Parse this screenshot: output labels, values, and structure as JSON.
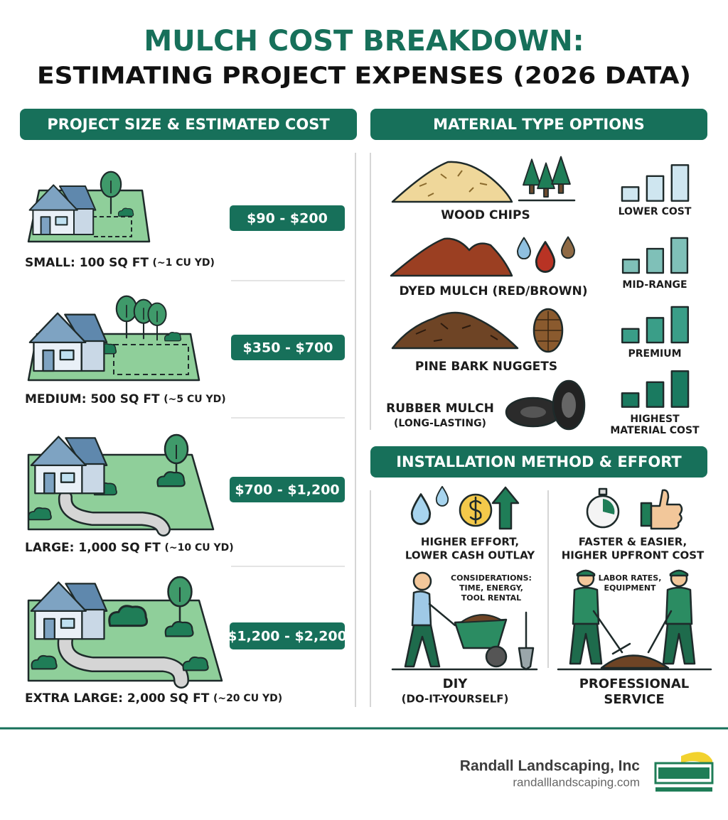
{
  "title": {
    "line1": "MULCH COST BREAKDOWN:",
    "line2": "ESTIMATING PROJECT EXPENSES (2026 DATA)"
  },
  "project_size": {
    "heading": "PROJECT SIZE & ESTIMATED COST",
    "items": [
      {
        "label": "SMALL: 100 SQ FT",
        "note": "(~1 CU YD)",
        "price": "$90 - $200"
      },
      {
        "label": "MEDIUM: 500 SQ FT",
        "note": "(~5 CU YD)",
        "price": "$350 - $700"
      },
      {
        "label": "LARGE: 1,000 SQ FT",
        "note": "(~10 CU YD)",
        "price": "$700 - $1,200"
      },
      {
        "label": "EXTRA LARGE: 2,000 SQ FT",
        "note": "(~20 CU YD)",
        "price": "$1,200 - $2,200"
      }
    ]
  },
  "materials": {
    "heading": "MATERIAL TYPE OPTIONS",
    "items": [
      {
        "name": [
          "WOOD CHIPS"
        ],
        "cost": [
          "LOWER COST"
        ]
      },
      {
        "name": [
          "DYED MULCH (RED/BROWN)"
        ],
        "cost": [
          "MID-RANGE"
        ]
      },
      {
        "name": [
          "PINE BARK NUGGETS"
        ],
        "cost": [
          "PREMIUM"
        ]
      },
      {
        "name": [
          "RUBBER MULCH",
          "(LONG-LASTING)"
        ],
        "cost": [
          "HIGHEST",
          "MATERIAL COST"
        ]
      }
    ]
  },
  "installation": {
    "heading": "INSTALLATION METHOD & EFFORT",
    "diy": {
      "summary": [
        "HIGHER EFFORT,",
        "LOWER CASH OUTLAY"
      ],
      "considerations": [
        "CONSIDERATIONS:",
        "TIME, ENERGY,",
        "TOOL RENTAL"
      ],
      "label": [
        "DIY",
        "(DO-IT-YOURSELF)"
      ]
    },
    "professional": {
      "summary": [
        "FASTER & EASIER,",
        "HIGHER UPFRONT COST"
      ],
      "considerations": [
        "LABOR RATES,",
        "EQUIPMENT"
      ],
      "label": [
        "PROFESSIONAL",
        "SERVICE"
      ]
    }
  },
  "footer": {
    "company": "Randall Landscaping, Inc",
    "url": "randalllandscaping.com"
  }
}
